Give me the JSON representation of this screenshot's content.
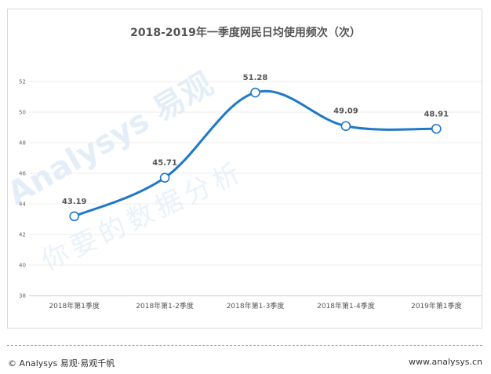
{
  "chart_data": {
    "type": "line",
    "title": "2018-2019年一季度网民日均使用频次（次）",
    "categories": [
      "2018年第1季度",
      "2018年第1-2季度",
      "2018年第1-3季度",
      "2018年第1-4季度",
      "2019年第1季度"
    ],
    "values": [
      43.19,
      45.71,
      51.28,
      49.09,
      48.91
    ],
    "data_labels": [
      "43.19",
      "45.71",
      "51.28",
      "49.09",
      "48.91"
    ],
    "ylim": [
      38,
      52
    ],
    "yticks": [
      "38",
      "40",
      "42",
      "44",
      "46",
      "48",
      "50",
      "52"
    ],
    "xlabel": "",
    "ylabel": "",
    "grid": true,
    "smooth": true,
    "line_color": "#1f78c8",
    "marker_fill": "#ffffff"
  },
  "watermark": {
    "brand": "Analysys 易观",
    "slogan": "你要的数据分析"
  },
  "footer": {
    "left": "© Analysys 易观·易观千帆",
    "right": "www.analysys.cn"
  }
}
